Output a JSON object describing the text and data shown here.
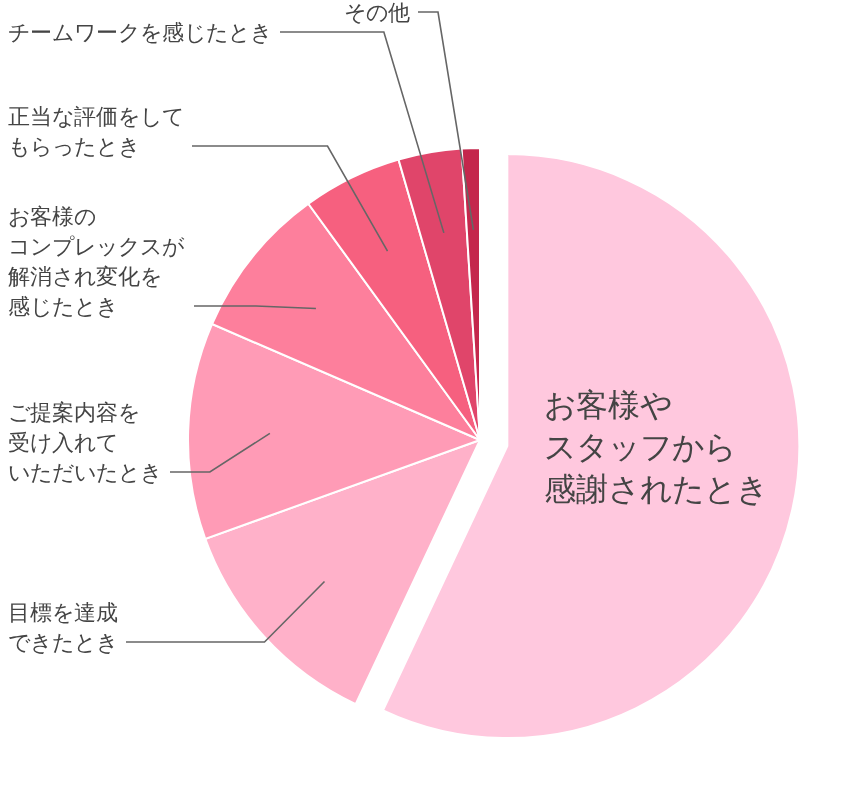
{
  "chart_data": {
    "type": "pie",
    "categories": [
      "お客様やスタッフから感謝されたとき",
      "目標を達成できたとき",
      "ご提案内容を受け入れていただいたとき",
      "お客様のコンプレックスが解消され変化を感じたとき",
      "正当な評価をしてもらったとき",
      "チームワークを感じたとき",
      "その他"
    ],
    "values": [
      57,
      12.5,
      12,
      8.5,
      5.5,
      3.5,
      1
    ],
    "colors": [
      "#ffc8de",
      "#ffb1c9",
      "#ff9bb6",
      "#fd7f9c",
      "#f6607f",
      "#e0456a",
      "#c4274c"
    ]
  }
}
